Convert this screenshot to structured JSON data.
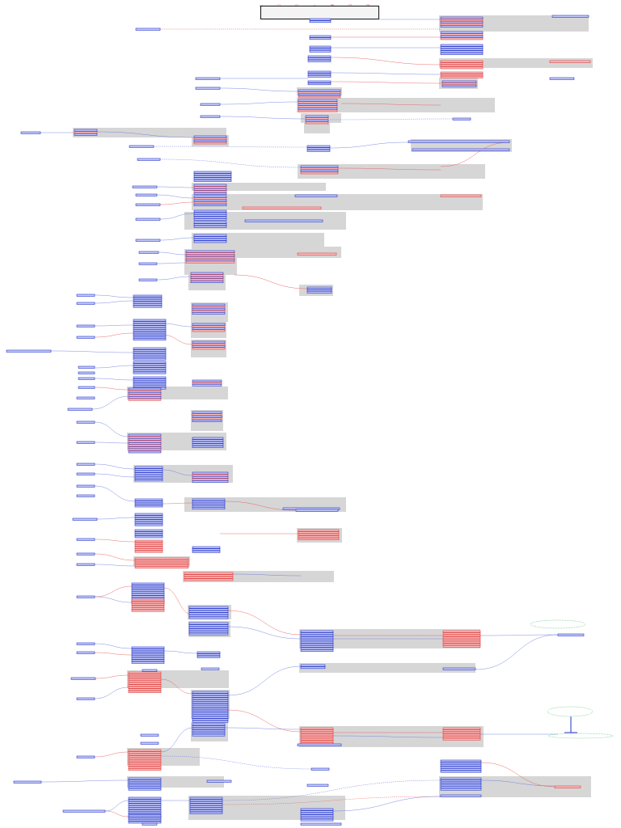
{
  "header": {
    "legend_symbols": [
      "↩",
      "▽",
      "◫",
      "⌂",
      "⊠",
      "⊟",
      "⊞"
    ],
    "title_lines": [
      "",
      "",
      "",
      "",
      ""
    ]
  },
  "colors": {
    "blue_node": "#2233cc",
    "blue_fill": "#c8cdf5",
    "red_node": "#e23a3a",
    "red_fill": "#f7c0c0",
    "cluster_fill": "#d6d6d6",
    "green_node": "#33bb55",
    "edge_blue": "#6677dd",
    "edge_red": "#e85555"
  }
}
